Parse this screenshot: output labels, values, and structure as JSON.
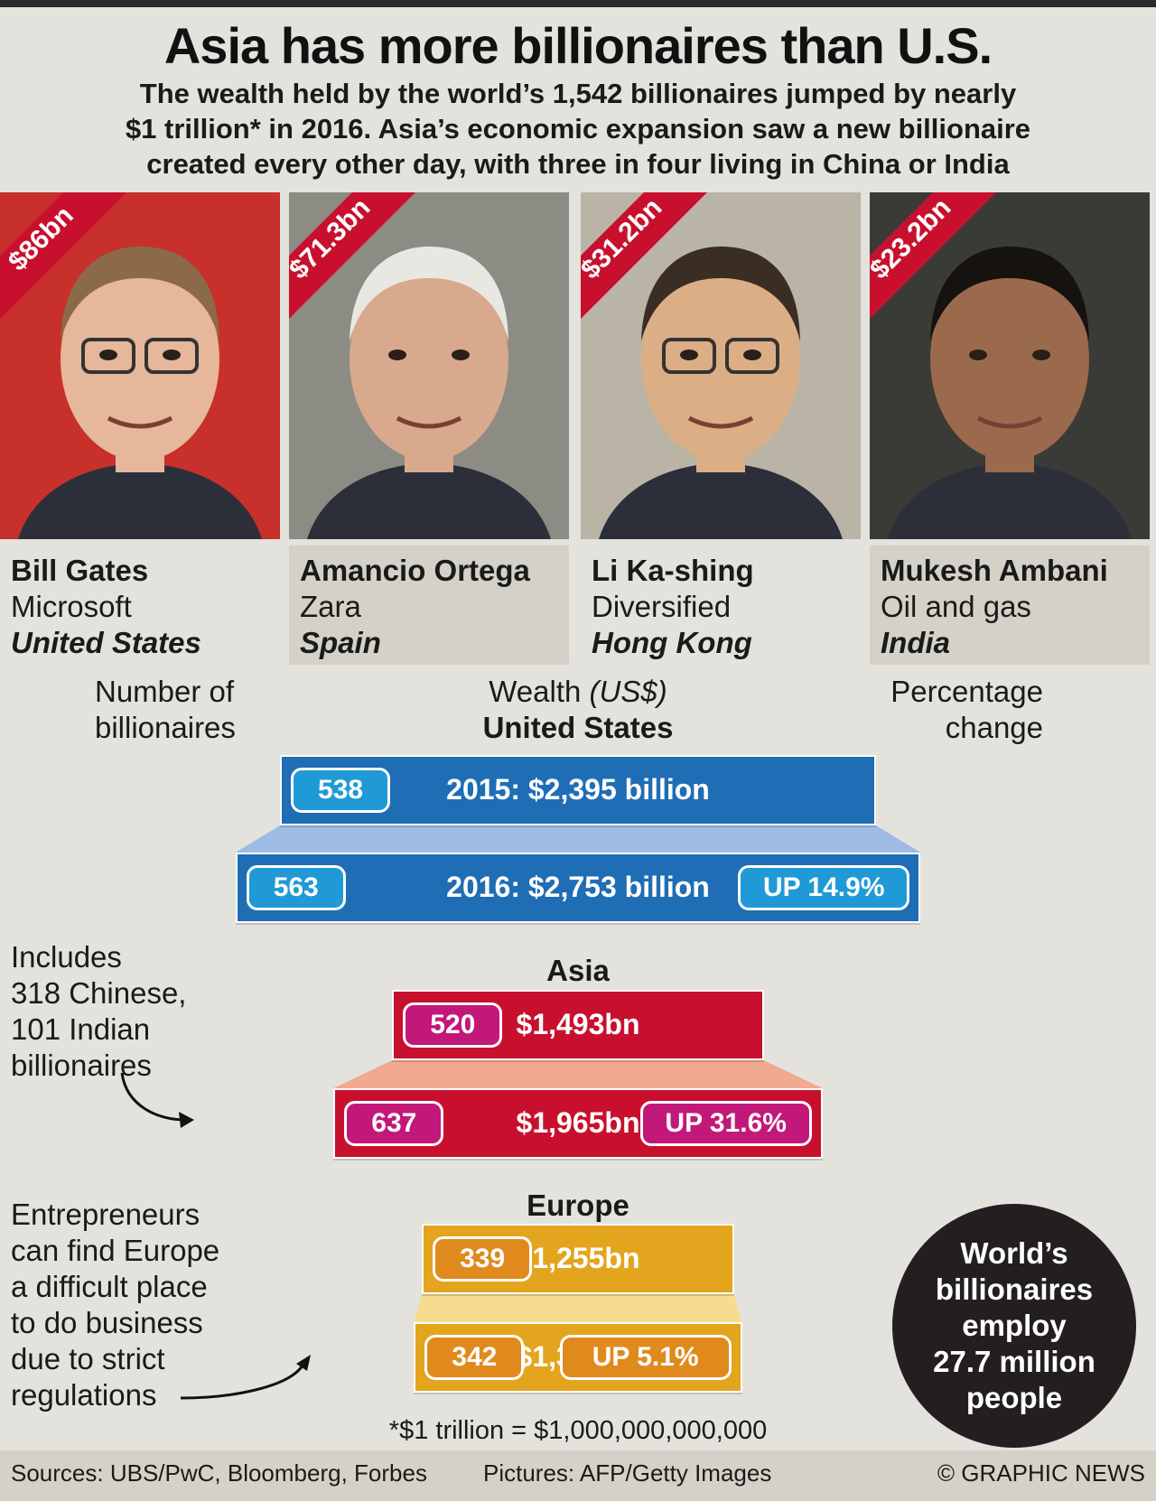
{
  "header": {
    "title": "Asia has more billionaires than U.S.",
    "subtitle_lines": [
      "The wealth held by the world’s 1,542 billionaires jumped by nearly",
      "$1 trillion* in 2016. Asia’s economic expansion saw a new billionaire",
      "created every other day, with three in four living in China or India"
    ]
  },
  "people": [
    {
      "worth": "$86bn",
      "name": "Bill Gates",
      "company": "Microsoft",
      "country": "United States"
    },
    {
      "worth": "$71.3bn",
      "name": "Amancio Ortega",
      "company": "Zara",
      "country": "Spain"
    },
    {
      "worth": "$31.2bn",
      "name": "Li Ka-shing",
      "company": "Diversified",
      "country": "Hong Kong"
    },
    {
      "worth": "$23.2bn",
      "name": "Mukesh Ambani",
      "company": "Oil and gas",
      "country": "India"
    }
  ],
  "column_headers": {
    "left_line1": "Number of",
    "left_line2": "billionaires",
    "center_line1": "Wealth",
    "center_unit": "(US$)",
    "right_line1": "Percentage",
    "right_line2": "change"
  },
  "chart_data": {
    "type": "bar",
    "unit": "US$ billion",
    "regions": [
      {
        "name": "United States",
        "color": "#1f6db5",
        "pill_color": "#1f9ad6",
        "rows": [
          {
            "year": "2015",
            "label": "2015: $2,395 billion",
            "wealth": 2395,
            "count": "538"
          },
          {
            "year": "2016",
            "label": "2016: $2,753 billion",
            "wealth": 2753,
            "count": "563",
            "change": "UP 14.9%"
          }
        ]
      },
      {
        "name": "Asia",
        "color": "#c8102e",
        "pill_color": "#c2187a",
        "rows": [
          {
            "year": "2015",
            "label": "$1,493bn",
            "wealth": 1493,
            "count": "520"
          },
          {
            "year": "2016",
            "label": "$1,965bn",
            "wealth": 1965,
            "count": "637",
            "change": "UP 31.6%"
          }
        ]
      },
      {
        "name": "Europe",
        "color": "#e3a51e",
        "pill_color": "#e08a1e",
        "rows": [
          {
            "year": "2015",
            "label": "$1,255bn",
            "wealth": 1255,
            "count": "339"
          },
          {
            "year": "2016",
            "label": "$1,319bn",
            "wealth": 1319,
            "count": "342",
            "change": "UP 5.1%"
          }
        ]
      }
    ]
  },
  "notes": {
    "asia_lines": [
      "Includes",
      "318 Chinese,",
      "101 Indian",
      "billionaires"
    ],
    "europe_lines": [
      "Entrepreneurs",
      "can find Europe",
      "a difficult place",
      "to do business",
      "due to strict",
      "regulations"
    ],
    "employ_lines": [
      "World’s",
      "billionaires",
      "employ",
      "27.7 million",
      "people"
    ],
    "footnote": "*$1 trillion = $1,000,000,000,000"
  },
  "footer": {
    "sources": "Sources: UBS/PwC, Bloomberg, Forbes",
    "pictures": "Pictures: AFP/Getty Images",
    "credit": "© GRAPHIC NEWS"
  }
}
